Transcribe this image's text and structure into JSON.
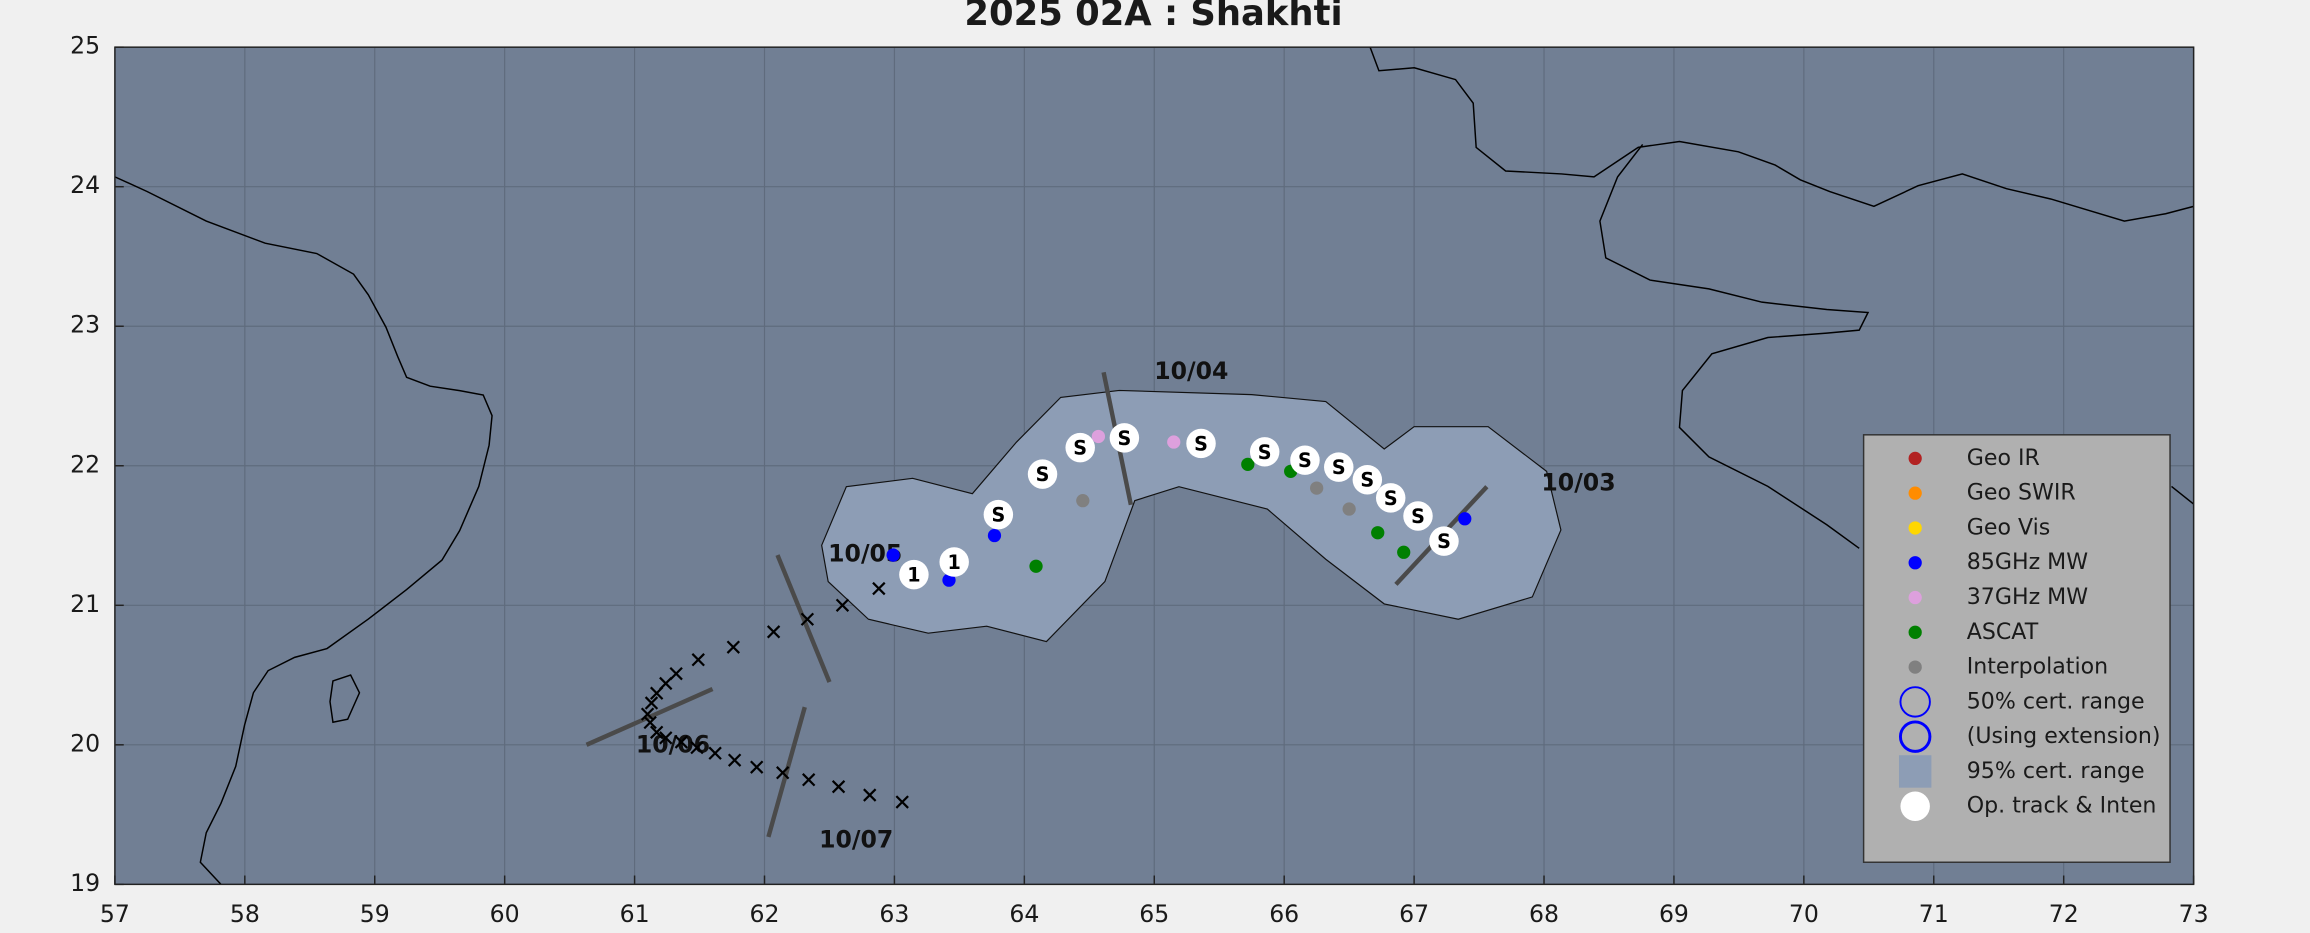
{
  "chart_data": {
    "type": "scatter",
    "title": "2025  02A :  Shakhti",
    "xlim": [
      57,
      73
    ],
    "ylim": [
      19,
      25
    ],
    "xticks": [
      57,
      58,
      59,
      60,
      61,
      62,
      63,
      64,
      65,
      66,
      67,
      68,
      69,
      70,
      71,
      72,
      73
    ],
    "yticks": [
      19,
      20,
      21,
      22,
      23,
      24,
      25
    ],
    "grid": true,
    "background": "#717f94",
    "series": [
      {
        "name": "Geo IR",
        "color": "#b22222",
        "marker": "dot",
        "x": [],
        "y": []
      },
      {
        "name": "Geo SWIR",
        "color": "#ff8c00",
        "marker": "dot",
        "x": [],
        "y": []
      },
      {
        "name": "Geo Vis",
        "color": "#ffd700",
        "marker": "dot",
        "x": [],
        "y": []
      },
      {
        "name": "85GHz MW",
        "color": "#0000ff",
        "marker": "dot",
        "x": [
          67.39,
          63.77,
          63.42,
          62.99
        ],
        "y": [
          21.62,
          21.5,
          21.18,
          21.36
        ]
      },
      {
        "name": "37GHz MW",
        "color": "#dda0dd",
        "marker": "dot",
        "x": [
          65.15,
          64.57
        ],
        "y": [
          22.17,
          22.21
        ]
      },
      {
        "name": "ASCAT",
        "color": "#008000",
        "marker": "dot",
        "x": [
          66.92,
          66.72,
          66.05,
          65.72,
          64.09
        ],
        "y": [
          21.38,
          21.52,
          21.96,
          22.01,
          21.28
        ]
      },
      {
        "name": "Interpolation",
        "color": "#808080",
        "marker": "dot",
        "x": [
          66.5,
          66.25,
          64.45
        ],
        "y": [
          21.69,
          21.84,
          21.75
        ]
      },
      {
        "name": "50% cert. range",
        "color": "#0000ff",
        "marker": "ring",
        "x": [],
        "y": []
      },
      {
        "name": "(Using extension)",
        "color": "#0000ff",
        "marker": "ring",
        "x": [],
        "y": []
      },
      {
        "name": "95% cert. range",
        "color": "#8d9db5",
        "marker": "area",
        "x": [
          62.44,
          62.63,
          63.14,
          63.6,
          63.94,
          64.28,
          64.73,
          65.75,
          66.32,
          66.77,
          67.0,
          67.57,
          68.02,
          68.13,
          67.91,
          67.34,
          66.77,
          66.32,
          65.87,
          65.19,
          64.85,
          64.62,
          64.17,
          63.71,
          63.26,
          62.8,
          62.49
        ],
        "y": [
          21.43,
          21.85,
          21.91,
          21.8,
          22.17,
          22.49,
          22.54,
          22.51,
          22.46,
          22.12,
          22.28,
          22.28,
          21.96,
          21.54,
          21.06,
          20.9,
          21.01,
          21.33,
          21.69,
          21.85,
          21.75,
          21.17,
          20.74,
          20.85,
          20.8,
          20.9,
          21.17
        ]
      },
      {
        "name": "Op. track & Inten",
        "color": "#ffffff",
        "marker": "disc",
        "x": [
          67.23,
          67.03,
          66.82,
          66.64,
          66.42,
          66.16,
          65.85,
          65.36,
          64.77,
          64.43,
          64.14,
          63.8,
          63.46,
          63.15
        ],
        "y": [
          21.46,
          21.64,
          21.77,
          21.9,
          21.99,
          22.04,
          22.1,
          22.16,
          22.2,
          22.13,
          21.94,
          21.65,
          21.31,
          21.22
        ],
        "labels": [
          "S",
          "S",
          "S",
          "S",
          "S",
          "S",
          "S",
          "S",
          "S",
          "S",
          "S",
          "S",
          "1",
          "1"
        ]
      }
    ],
    "forecast": {
      "color": "#000000",
      "x": [
        62.88,
        62.6,
        62.33,
        62.07,
        61.76,
        61.49,
        61.32,
        61.24,
        61.17,
        61.13,
        61.1,
        61.12,
        61.17,
        61.24,
        61.36,
        61.48,
        61.62,
        61.77,
        61.94,
        62.14,
        62.34,
        62.57,
        62.81,
        63.06
      ],
      "y": [
        21.12,
        21.0,
        20.9,
        20.81,
        20.7,
        20.61,
        20.51,
        20.44,
        20.37,
        20.3,
        20.22,
        20.16,
        20.09,
        20.05,
        20.02,
        19.98,
        19.94,
        19.89,
        19.84,
        19.8,
        19.75,
        19.7,
        19.64,
        19.59
      ]
    },
    "annotations": [
      {
        "text": "10/03",
        "x": 67.98,
        "y": 21.87,
        "line": [
          66.86,
          21.15,
          67.56,
          21.85
        ]
      },
      {
        "text": "10/04",
        "x": 65.0,
        "y": 22.67,
        "line": [
          64.61,
          22.67,
          64.82,
          21.72
        ]
      },
      {
        "text": "10/05",
        "x": 62.49,
        "y": 21.36,
        "line": [
          62.1,
          21.36,
          62.5,
          20.45
        ]
      },
      {
        "text": "10/06",
        "x": 61.01,
        "y": 19.99,
        "line": [
          60.63,
          20.0,
          61.6,
          20.4
        ]
      },
      {
        "text": "10/07",
        "x": 62.42,
        "y": 19.31,
        "line": [
          62.03,
          19.34,
          62.31,
          20.27
        ]
      }
    ]
  }
}
